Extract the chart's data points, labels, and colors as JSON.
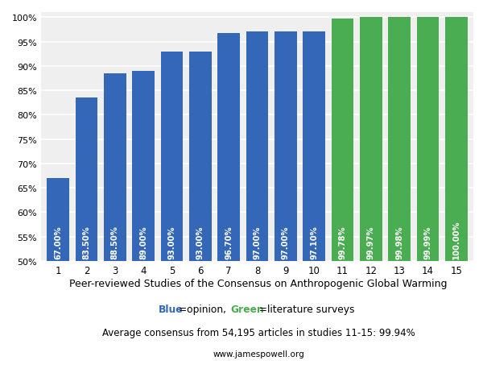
{
  "categories": [
    1,
    2,
    3,
    4,
    5,
    6,
    7,
    8,
    9,
    10,
    11,
    12,
    13,
    14,
    15
  ],
  "values": [
    67.0,
    83.5,
    88.5,
    89.0,
    93.0,
    93.0,
    96.7,
    97.0,
    97.0,
    97.1,
    99.78,
    99.97,
    99.98,
    99.99,
    100.0
  ],
  "labels": [
    "67.00%",
    "83.50%",
    "88.50%",
    "89.00%",
    "93.00%",
    "93.00%",
    "96.70%",
    "97.00%",
    "97.00%",
    "97.10%",
    "99.78%",
    "99.97%",
    "99.98%",
    "99.99%",
    "100.00%"
  ],
  "colors": [
    "#3467B8",
    "#3467B8",
    "#3467B8",
    "#3467B8",
    "#3467B8",
    "#3467B8",
    "#3467B8",
    "#3467B8",
    "#3467B8",
    "#3467B8",
    "#4BAD52",
    "#4BAD52",
    "#4BAD52",
    "#4BAD52",
    "#4BAD52"
  ],
  "blue_color": "#3467B8",
  "green_color": "#4BAD52",
  "ylim_min": 50,
  "ylim_max": 101,
  "yticks": [
    50,
    55,
    60,
    65,
    70,
    75,
    80,
    85,
    90,
    95,
    100
  ],
  "title_line1": "Peer-reviewed Studies of the Consensus on Anthropogenic Global Warming",
  "title_line2_blue": "Blue",
  "title_line2_mid": "=opinion, ",
  "title_line2_green": "Green",
  "title_line2_end": " =literature surveys",
  "title_line3": "Average consensus from 54,195 articles in studies 11-15: 99.94%",
  "title_line4": "www.jamespowell.org",
  "background_color": "#FFFFFF",
  "panel_color": "#EFEFEF",
  "label_fontsize": 7.2,
  "title_fontsize1": 9.0,
  "title_fontsize2": 8.8,
  "title_fontsize3": 8.5,
  "title_fontsize4": 7.5
}
